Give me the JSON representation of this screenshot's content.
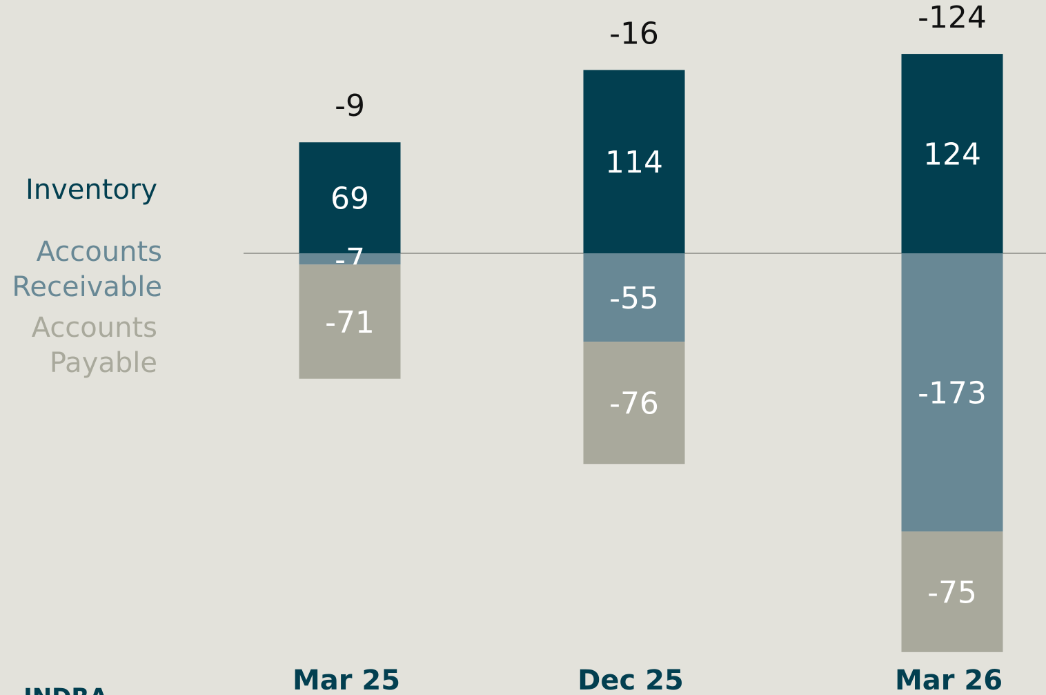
{
  "chart_data": {
    "type": "stacked_bar",
    "categories": [
      "Mar 25",
      "Dec 25",
      "Mar 26"
    ],
    "series": [
      {
        "name": "Inventory",
        "color": "#023f50",
        "values": [
          69,
          114,
          124
        ]
      },
      {
        "name": "Accounts Receivable",
        "color": "#688895",
        "values": [
          -7,
          -55,
          -173
        ]
      },
      {
        "name": "Accounts Payable",
        "color": "#a9a99c",
        "values": [
          -71,
          -76,
          -75
        ]
      }
    ],
    "totals": [
      -9,
      -16,
      -124
    ],
    "legend": "left"
  },
  "logo": "INDRA"
}
